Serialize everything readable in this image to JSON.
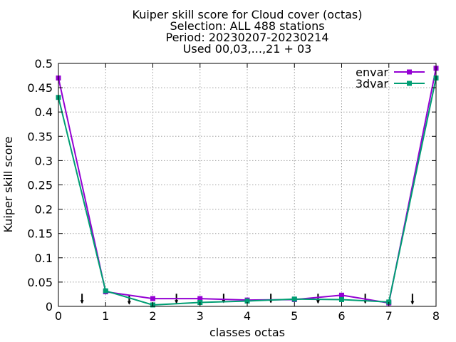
{
  "chart_data": {
    "type": "line",
    "title_lines": [
      "Kuiper skill score  for Cloud cover (octas)",
      "Selection: ALL    488 stations",
      "Period: 20230207-20230214",
      "Used 00,03,...,21 + 03"
    ],
    "xlabel": "classes octas",
    "ylabel": "Kuiper skill score",
    "xlim": [
      0,
      8
    ],
    "ylim": [
      0,
      0.5
    ],
    "x_ticks": [
      0,
      1,
      2,
      3,
      4,
      5,
      6,
      7,
      8
    ],
    "x_tick_labels": [
      "0",
      "1",
      "2",
      "3",
      "4",
      "5",
      "6",
      "7",
      "8"
    ],
    "y_ticks": [
      0,
      0.05,
      0.1,
      0.15,
      0.2,
      0.25,
      0.3,
      0.35,
      0.4,
      0.45,
      0.5
    ],
    "y_tick_labels": [
      "0",
      "0.05",
      "0.1",
      "0.15",
      "0.2",
      "0.25",
      "0.3",
      "0.35",
      "0.4",
      "0.45",
      "0.5"
    ],
    "grid": true,
    "legend_position": "top-right",
    "x": [
      0,
      1,
      2,
      3,
      4,
      5,
      6,
      7,
      8
    ],
    "series": [
      {
        "name": "envar",
        "color": "#9400d3",
        "values": [
          0.47,
          0.03,
          0.016,
          0.016,
          0.013,
          0.014,
          0.023,
          0.007,
          0.49
        ]
      },
      {
        "name": "3dvar",
        "color": "#009e73",
        "values": [
          0.43,
          0.032,
          0.003,
          0.008,
          0.011,
          0.015,
          0.014,
          0.009,
          0.47
        ]
      }
    ],
    "error_bars": [
      {
        "x": 0.5,
        "low": 0.007,
        "high": 0.026
      },
      {
        "x": 1.5,
        "low": 0.005,
        "high": 0.022
      },
      {
        "x": 2.5,
        "low": 0.007,
        "high": 0.026
      },
      {
        "x": 3.5,
        "low": 0.008,
        "high": 0.026
      },
      {
        "x": 4.5,
        "low": 0.008,
        "high": 0.026
      },
      {
        "x": 5.5,
        "low": 0.007,
        "high": 0.026
      },
      {
        "x": 6.5,
        "low": 0.007,
        "high": 0.026
      },
      {
        "x": 7.5,
        "low": 0.005,
        "high": 0.026
      }
    ]
  }
}
